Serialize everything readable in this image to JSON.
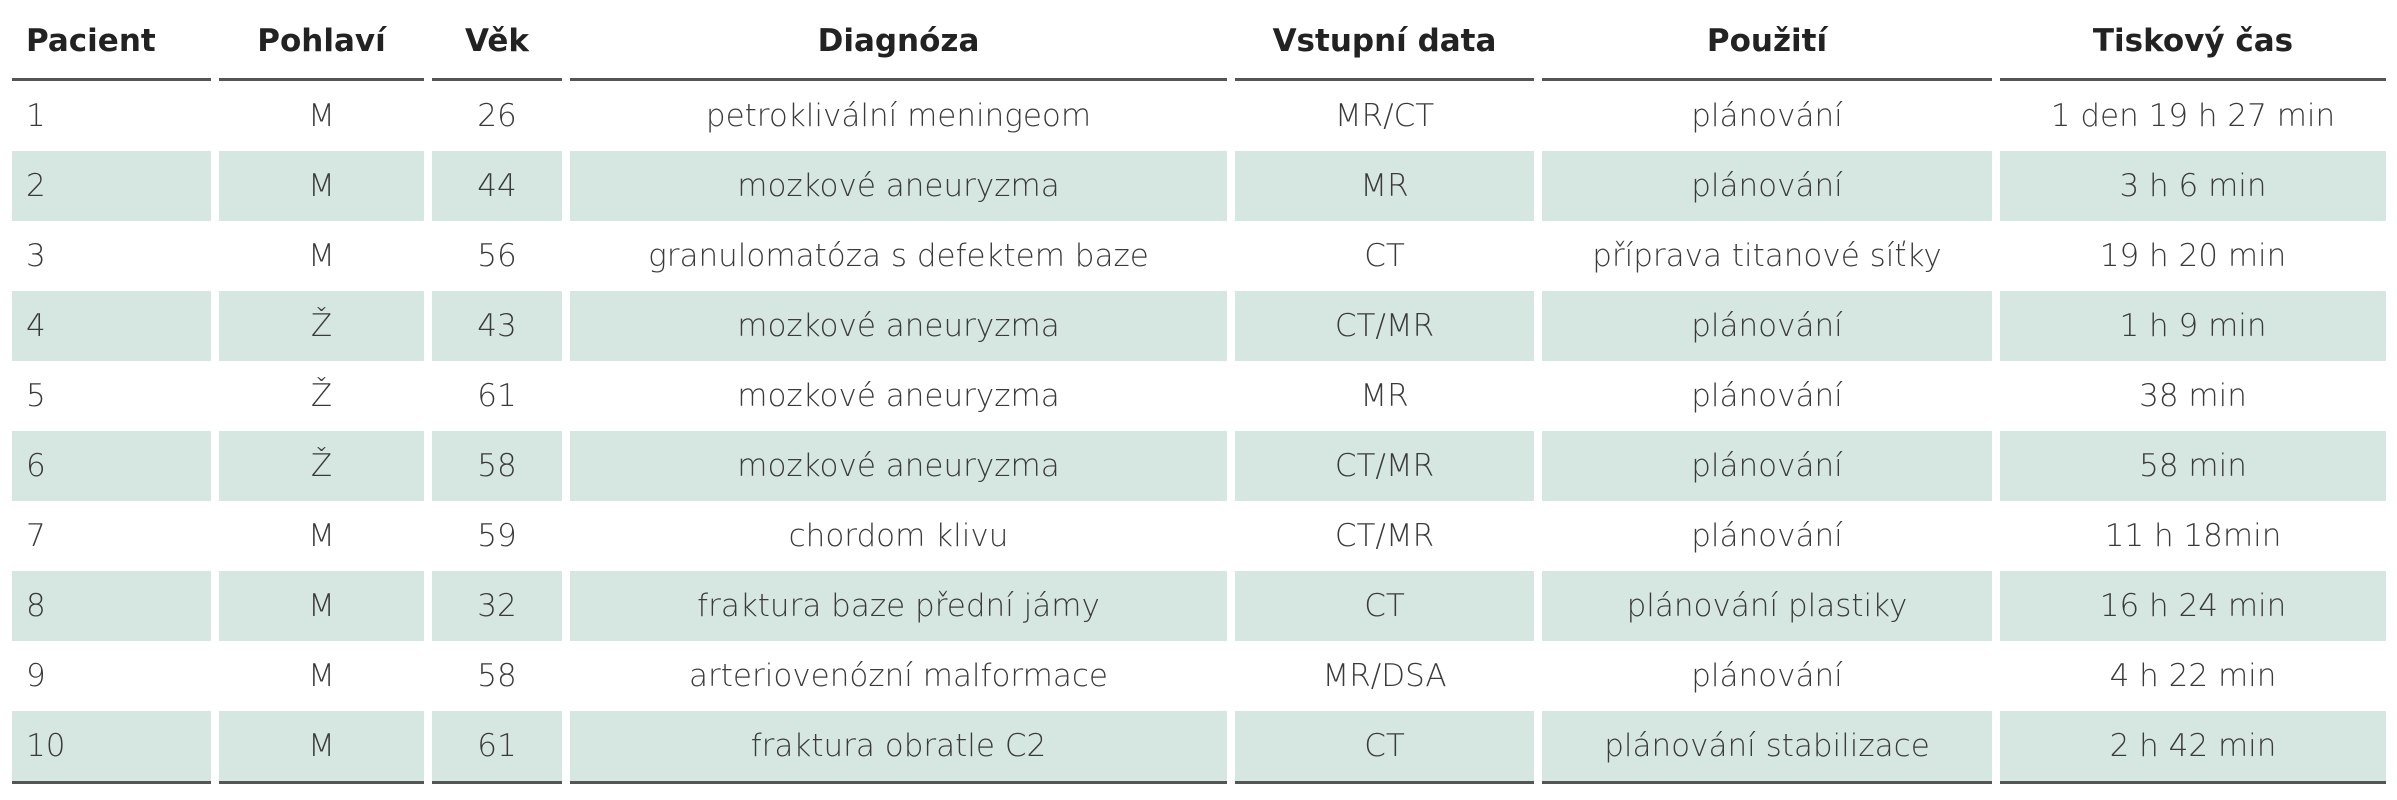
{
  "table": {
    "header": [
      "Pacient",
      "Pohlaví",
      "Věk",
      "Diagnóza",
      "Vstupní data",
      "Použití",
      "Tiskový čas"
    ],
    "rows": [
      [
        "1",
        "M",
        "26",
        "petroklivální meningeom",
        "MR/CT",
        "plánování",
        "1 den 19 h 27 min"
      ],
      [
        "2",
        "M",
        "44",
        "mozkové aneuryzma",
        "MR",
        "plánování",
        "3 h 6 min"
      ],
      [
        "3",
        "M",
        "56",
        "granulomatóza s defektem baze",
        "CT",
        "příprava titanové síťky",
        "19 h 20 min"
      ],
      [
        "4",
        "Ž",
        "43",
        "mozkové aneuryzma",
        "CT/MR",
        "plánování",
        "1 h 9 min"
      ],
      [
        "5",
        "Ž",
        "61",
        "mozkové aneuryzma",
        "MR",
        "plánování",
        "38 min"
      ],
      [
        "6",
        "Ž",
        "58",
        "mozkové aneuryzma",
        "CT/MR",
        "plánování",
        "58 min"
      ],
      [
        "7",
        "M",
        "59",
        "chordom klivu",
        "CT/MR",
        "plánování",
        "11 h 18min"
      ],
      [
        "8",
        "M",
        "32",
        "fraktura baze přední jámy",
        "CT",
        "plánování plastiky",
        "16 h 24 min"
      ],
      [
        "9",
        "M",
        "58",
        "arteriovenózní malformace",
        "MR/DSA",
        "plánování",
        "4 h 22 min"
      ],
      [
        "10",
        "M",
        "61",
        "fraktura obratle C2",
        "CT",
        "plánování stabilizace",
        "2 h 42 min"
      ]
    ]
  }
}
